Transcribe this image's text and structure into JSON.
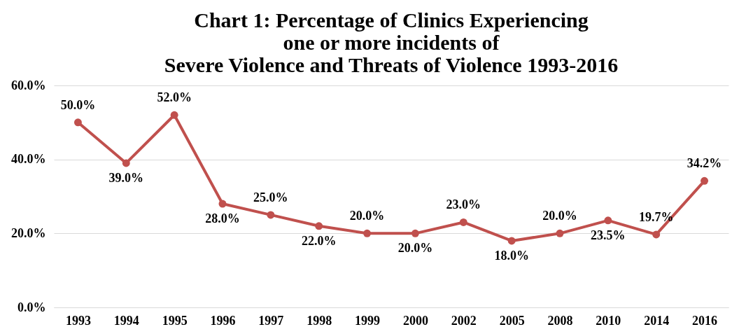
{
  "chart_data": {
    "type": "line",
    "title": [
      "Chart 1: Percentage of Clinics Experiencing",
      "one or more incidents of",
      "Severe Violence and Threats of Violence 1993-2016"
    ],
    "categories": [
      "1993",
      "1994",
      "1995",
      "1996",
      "1997",
      "1998",
      "1999",
      "2000",
      "2002",
      "2005",
      "2008",
      "2010",
      "2014",
      "2016"
    ],
    "series": [
      {
        "color": "#c0504d",
        "values": [
          50.0,
          39.0,
          52.0,
          28.0,
          25.0,
          22.0,
          20.0,
          20.0,
          23.0,
          18.0,
          20.0,
          23.5,
          19.7,
          34.2
        ],
        "value_labels": [
          "50.0%",
          "39.0%",
          "52.0%",
          "28.0%",
          "25.0%",
          "22.0%",
          "20.0%",
          "20.0%",
          "23.0%",
          "18.0%",
          "20.0%",
          "23.5%",
          "19.7%",
          "34.2%"
        ]
      }
    ],
    "ylim": [
      0,
      60
    ],
    "yticks": [
      {
        "value": 0,
        "label": "0.0%"
      },
      {
        "value": 20,
        "label": "20.0%"
      },
      {
        "value": 40,
        "label": "40.0%"
      },
      {
        "value": 60,
        "label": "60.0%"
      }
    ],
    "grid": "y",
    "marker": "circle",
    "line_style": "solid"
  }
}
